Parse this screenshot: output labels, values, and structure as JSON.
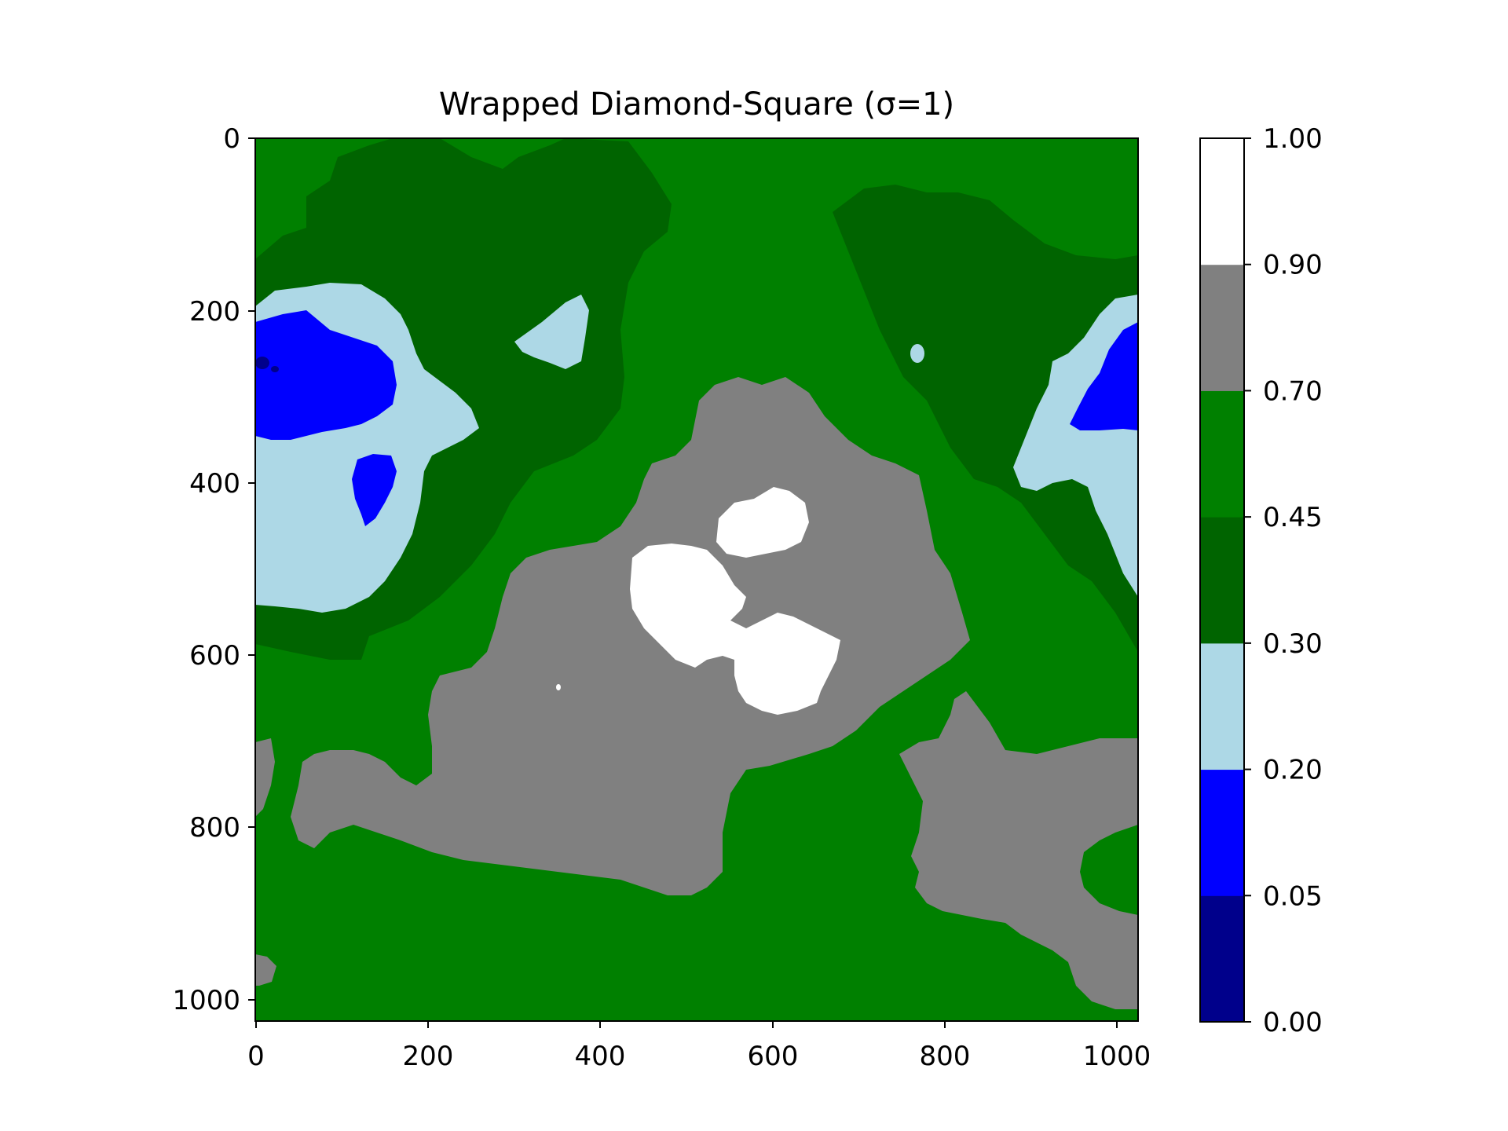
{
  "chart_data": {
    "type": "heatmap",
    "title": "Wrapped Diamond-Square (σ=1)",
    "xlabel": "",
    "ylabel": "",
    "xlim": [
      0,
      1025
    ],
    "ylim": [
      1025,
      0
    ],
    "x_ticks": [
      "0",
      "200",
      "400",
      "600",
      "800",
      "1000"
    ],
    "y_ticks": [
      "0",
      "200",
      "400",
      "600",
      "800",
      "1000"
    ],
    "colorbar": {
      "levels": [
        0.0,
        0.05,
        0.2,
        0.3,
        0.45,
        0.7,
        0.9,
        1.0
      ],
      "labels": [
        "0.00",
        "0.05",
        "0.20",
        "0.30",
        "0.45",
        "0.70",
        "0.90",
        "1.00"
      ],
      "colors": [
        "#00008b",
        "#0000ff",
        "#add8e6",
        "#006400",
        "#008000",
        "#808080",
        "#ffffff"
      ]
    },
    "grid": false
  }
}
